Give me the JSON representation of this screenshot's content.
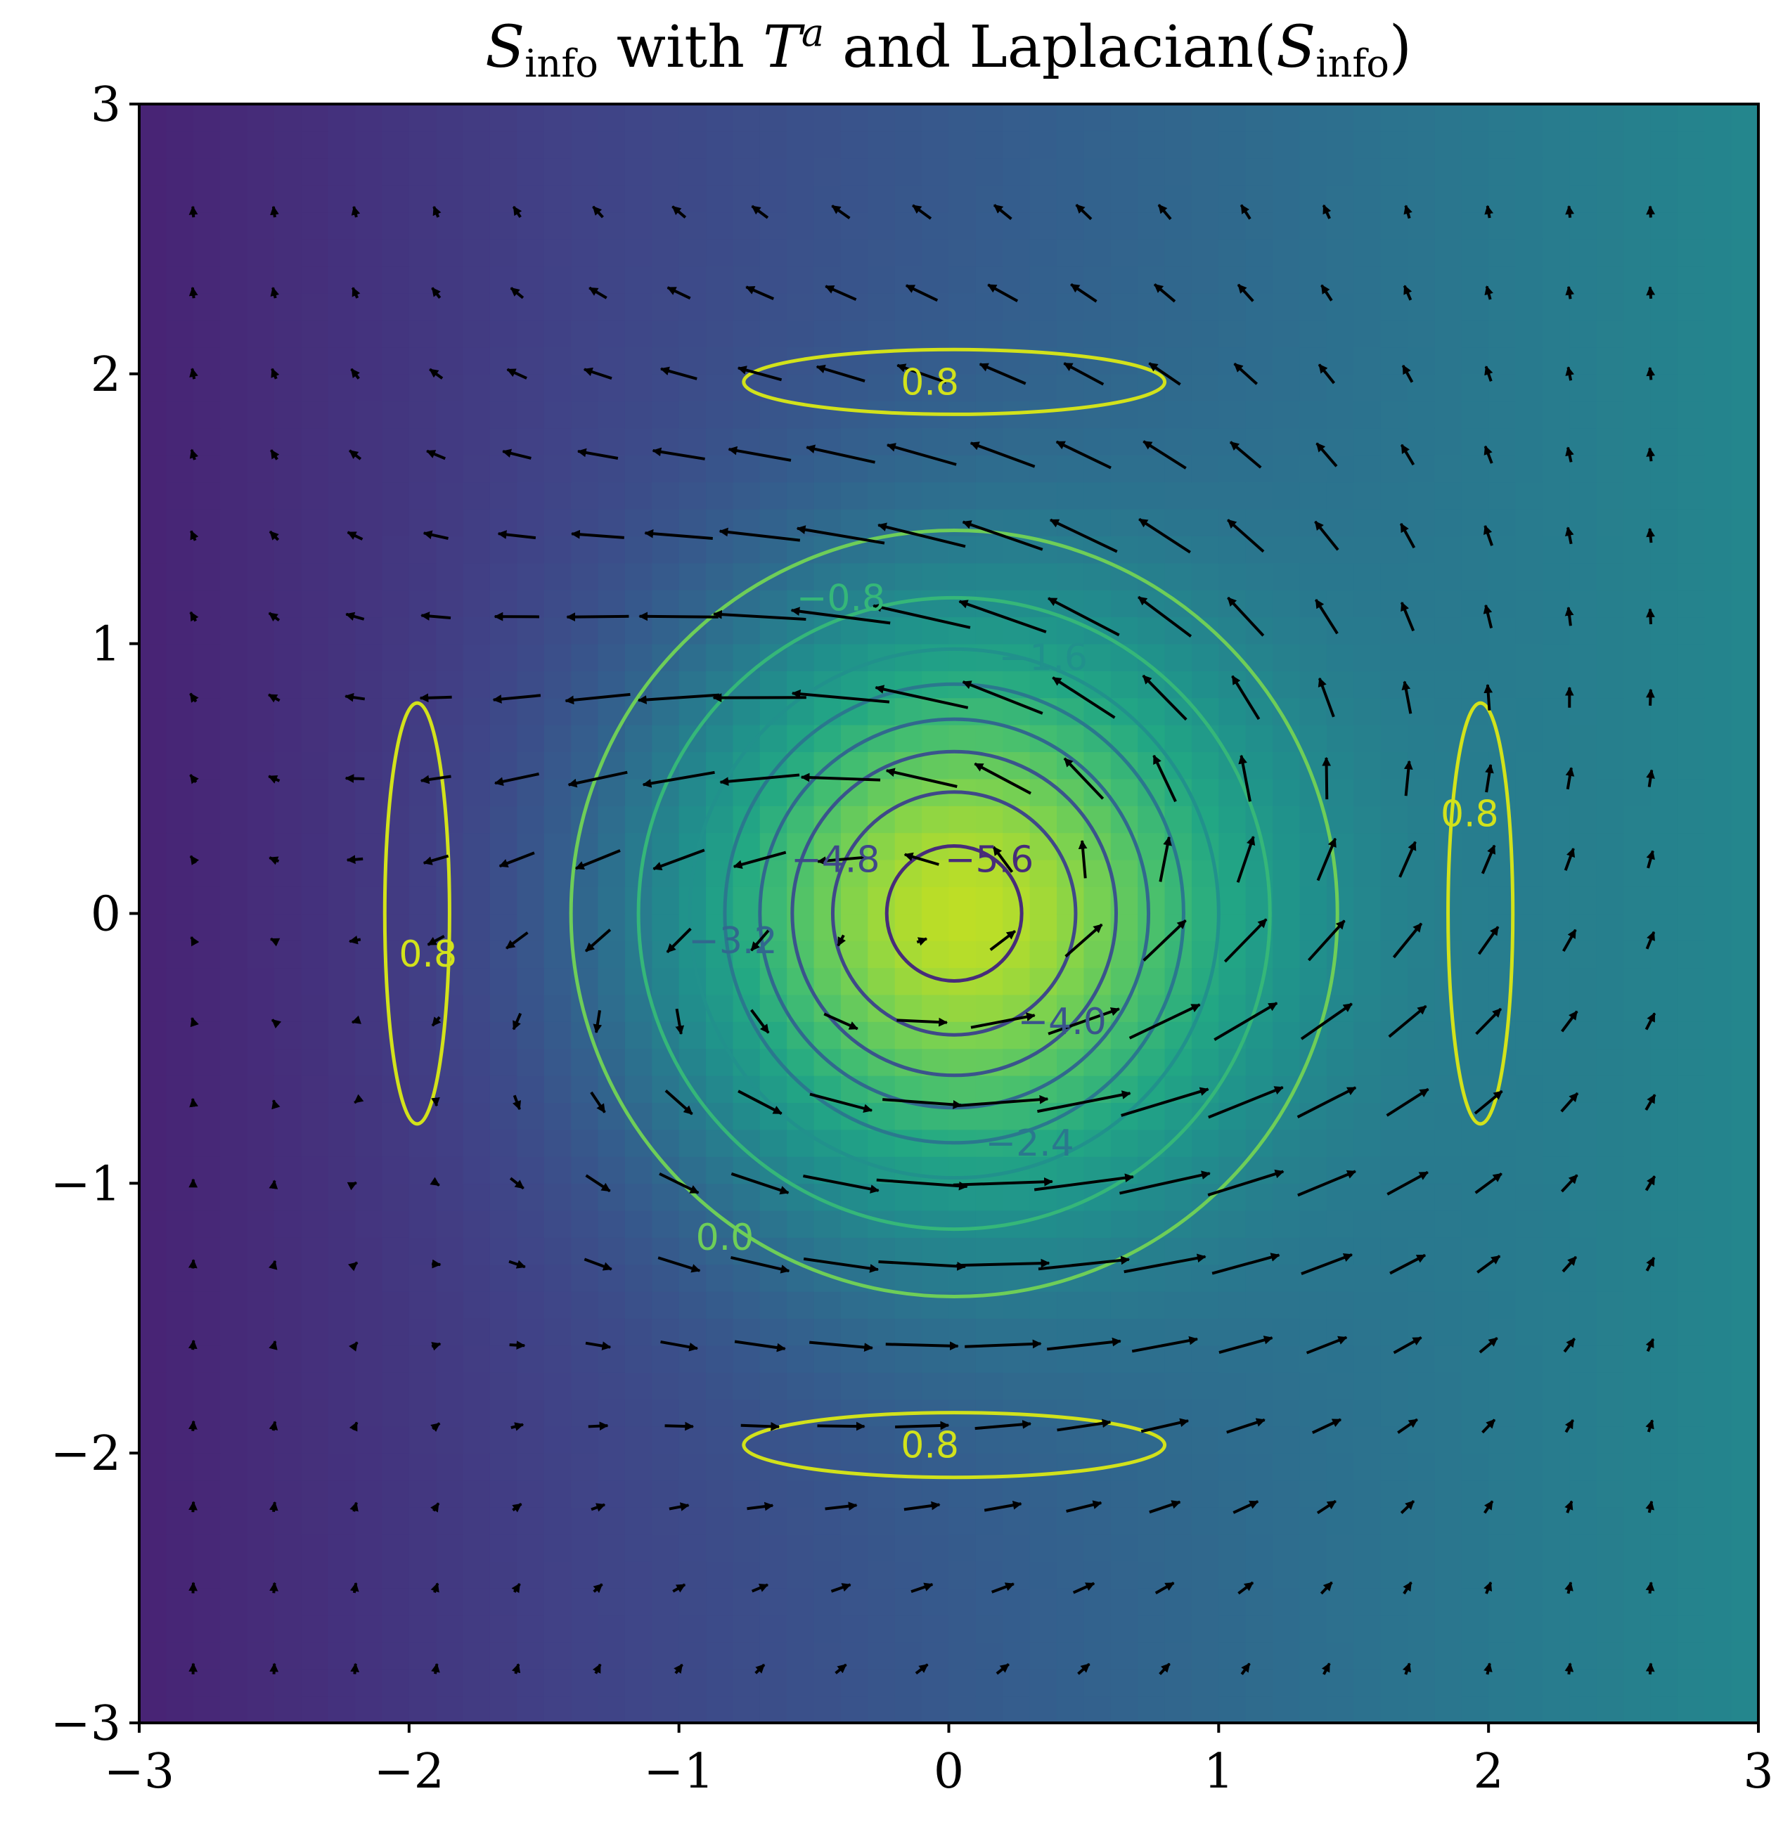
{
  "chart_data": {
    "type": "heatmap",
    "title": {
      "s_main": "S",
      "s_sub": "info",
      "with": " with ",
      "t_main": "T",
      "t_sup": "a",
      "and": " and Laplacian(",
      "s2_main": "S",
      "s2_sub": "info",
      "close": ")"
    },
    "xlim": [
      -3,
      3
    ],
    "ylim": [
      -3,
      3
    ],
    "xticks": [
      -3,
      -2,
      -1,
      0,
      1,
      2,
      3
    ],
    "yticks": [
      -3,
      -2,
      -1,
      0,
      1,
      2,
      3
    ],
    "xtick_labels": [
      "−3",
      "−2",
      "−1",
      "0",
      "1",
      "2",
      "3"
    ],
    "ytick_labels": [
      "−3",
      "−2",
      "−1",
      "0",
      "1",
      "2",
      "3"
    ],
    "colormap": "viridis",
    "background_field": {
      "description_values": "Gaussian peak at origin plus linear gradient increasing with x",
      "peak_center": [
        0,
        0
      ],
      "min_color": "#440154",
      "max_color": "#fde725"
    },
    "contour_labels": [
      {
        "text": "−5.6",
        "x": 0.15,
        "y": 0.2
      },
      {
        "text": "−4.8",
        "x": -0.42,
        "y": 0.2
      },
      {
        "text": "−4.0",
        "x": 0.42,
        "y": -0.4
      },
      {
        "text": "−3.2",
        "x": -0.8,
        "y": -0.1
      },
      {
        "text": "−2.4",
        "x": 0.3,
        "y": -0.85
      },
      {
        "text": "−1.6",
        "x": 0.35,
        "y": 0.95
      },
      {
        "text": "−0.8",
        "x": -0.4,
        "y": 1.17
      },
      {
        "text": "0.0",
        "x": -0.83,
        "y": -1.2
      },
      {
        "text": "0.8",
        "x": -0.07,
        "y": 1.97
      },
      {
        "text": "0.8",
        "x": -0.07,
        "y": -1.97
      },
      {
        "text": "0.8",
        "x": -1.93,
        "y": -0.15
      },
      {
        "text": "0.8",
        "x": 1.93,
        "y": 0.37
      }
    ],
    "contour_levels": [
      -5.6,
      -4.8,
      -4.0,
      -3.2,
      -2.4,
      -1.6,
      -0.8,
      0.0,
      0.8
    ],
    "contour_colors": {
      "-5.6": "#472c7a",
      "-4.8": "#3f4889",
      "-4.0": "#3a548c",
      "-3.2": "#31688e",
      "-2.4": "#2a788e",
      "-1.6": "#21918c",
      "-0.8": "#35b779",
      "0.0": "#6ece58",
      "0.8": "#d2e21b"
    },
    "quiver": {
      "grid_step": 0.3,
      "color": "#000000",
      "description": "vector field rotating around origin with outward/inward twist; small near edges"
    }
  }
}
